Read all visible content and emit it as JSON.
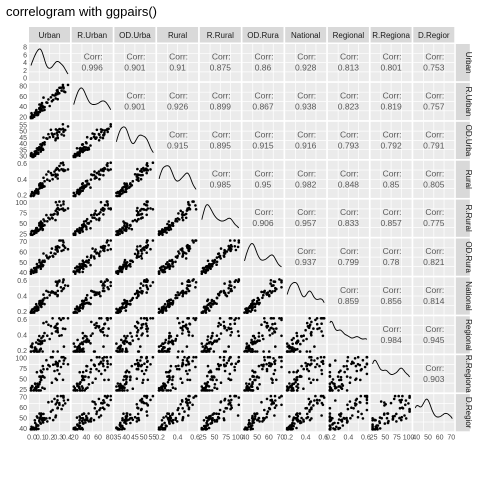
{
  "title": "correlogram with ggpairs()",
  "chart_data": {
    "type": "scatter",
    "title": "correlogram with ggpairs()",
    "variables": [
      "Urban",
      "R.Urban",
      "OD.Urban",
      "Rural",
      "R.Rural",
      "OD.Rural",
      "National",
      "Regional",
      "R.Regional",
      "OD.Regional"
    ],
    "strip_labels_top": [
      "Urban",
      "R.Urban",
      "OD.Urba",
      "Rural",
      "R.Rural",
      "OD.Rura",
      "National",
      "Regional",
      "R.Regiona",
      "D.Regior"
    ],
    "strip_labels_right": [
      "Urban",
      "R.Urban",
      "OD.Urba",
      "Rural",
      "R.Rural",
      "OD.Rura",
      "National",
      "Regional",
      "R.Regiona",
      "D.Regior"
    ],
    "corr_label": "Corr:",
    "correlations": [
      [
        "",
        "0.996",
        "0.901",
        "0.91",
        "0.875",
        "0.86",
        "0.928",
        "0.813",
        "0.801",
        "0.753"
      ],
      [
        "",
        "",
        "0.901",
        "0.926",
        "0.899",
        "0.867",
        "0.938",
        "0.823",
        "0.819",
        "0.757"
      ],
      [
        "",
        "",
        "",
        "0.915",
        "0.895",
        "0.915",
        "0.916",
        "0.793",
        "0.792",
        "0.791"
      ],
      [
        "",
        "",
        "",
        "",
        "0.985",
        "0.95",
        "0.982",
        "0.848",
        "0.85",
        "0.805"
      ],
      [
        "",
        "",
        "",
        "",
        "",
        "0.906",
        "0.957",
        "0.833",
        "0.857",
        "0.775"
      ],
      [
        "",
        "",
        "",
        "",
        "",
        "",
        "0.937",
        "0.799",
        "0.78",
        "0.821"
      ],
      [
        "",
        "",
        "",
        "",
        "",
        "",
        "",
        "0.859",
        "0.856",
        "0.814"
      ],
      [
        "",
        "",
        "",
        "",
        "",
        "",
        "",
        "",
        "0.984",
        "0.945"
      ],
      [
        "",
        "",
        "",
        "",
        "",
        "",
        "",
        "",
        "",
        "0.903"
      ]
    ],
    "y_ticks": [
      [
        "0",
        "2",
        "4",
        "6",
        "8"
      ],
      [
        "20",
        "40",
        "60",
        "80"
      ],
      [
        "30",
        "35",
        "40",
        "45",
        "50",
        "55"
      ],
      [
        "0.2",
        "0.4",
        "0.6"
      ],
      [
        "25",
        "50",
        "75",
        "100"
      ],
      [
        "40",
        "50",
        "60",
        "70"
      ],
      [
        "0.2",
        "0.4",
        "0.6"
      ],
      [
        "0.2",
        "0.4",
        "0.6"
      ],
      [
        "25",
        "50",
        "75",
        "100"
      ],
      [
        "40",
        "50",
        "60",
        "70"
      ]
    ],
    "x_ticks": [
      [
        "0.0",
        "0.1",
        "0.2",
        "0.3",
        "0.4"
      ],
      [
        "20",
        "40",
        "60",
        "80"
      ],
      [
        "35",
        "40",
        "45",
        "50",
        "55"
      ],
      [
        "0.2",
        "0.4",
        "0.6"
      ],
      [
        "25",
        "50",
        "75",
        "100"
      ],
      [
        "40",
        "50",
        "60",
        "70"
      ],
      [
        "0.2",
        "0.4",
        "0.6"
      ],
      [
        "0.2",
        "0.4",
        "0.6"
      ],
      [
        "25",
        "50",
        "75",
        "100"
      ],
      [
        "40",
        "50",
        "60",
        "70"
      ]
    ],
    "ranges": [
      [
        0,
        0.45
      ],
      [
        10,
        90
      ],
      [
        30,
        58
      ],
      [
        0.05,
        0.7
      ],
      [
        10,
        110
      ],
      [
        32,
        75
      ],
      [
        0.05,
        0.7
      ],
      [
        0.05,
        0.7
      ],
      [
        10,
        110
      ],
      [
        32,
        75
      ]
    ],
    "grid": true,
    "legend": "none"
  }
}
